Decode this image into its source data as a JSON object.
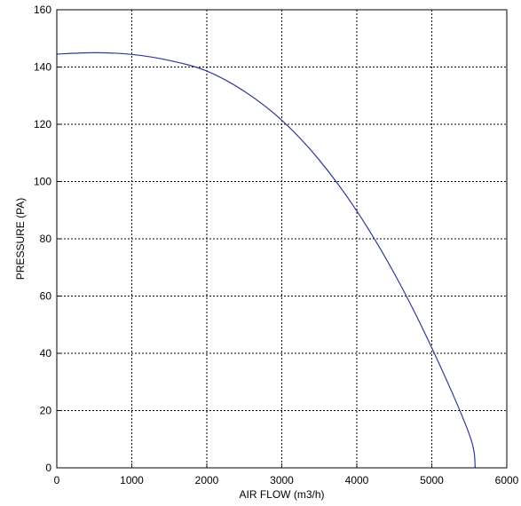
{
  "chart_data": {
    "type": "line",
    "title": "",
    "xlabel": "AIR FLOW (m3/h)",
    "ylabel": "PRESSURE (PA)",
    "xlim": [
      0,
      6000
    ],
    "ylim": [
      0,
      160
    ],
    "x_ticks": [
      "0",
      "1000",
      "2000",
      "3000",
      "4000",
      "5000",
      "6000"
    ],
    "y_ticks": [
      "0",
      "20",
      "40",
      "60",
      "80",
      "100",
      "120",
      "140",
      "160"
    ],
    "grid": true,
    "legend": "none",
    "series": [
      {
        "color": "#2b3a9a",
        "x": [
          0,
          500,
          1000,
          1500,
          2000,
          2500,
          3000,
          3500,
          4000,
          4500,
          5000,
          5500,
          5580
        ],
        "y": [
          144.5,
          145,
          144.4,
          142.3,
          138.6,
          131.5,
          121.4,
          107.5,
          89.7,
          67.9,
          41.9,
          11.7,
          0
        ]
      }
    ]
  }
}
